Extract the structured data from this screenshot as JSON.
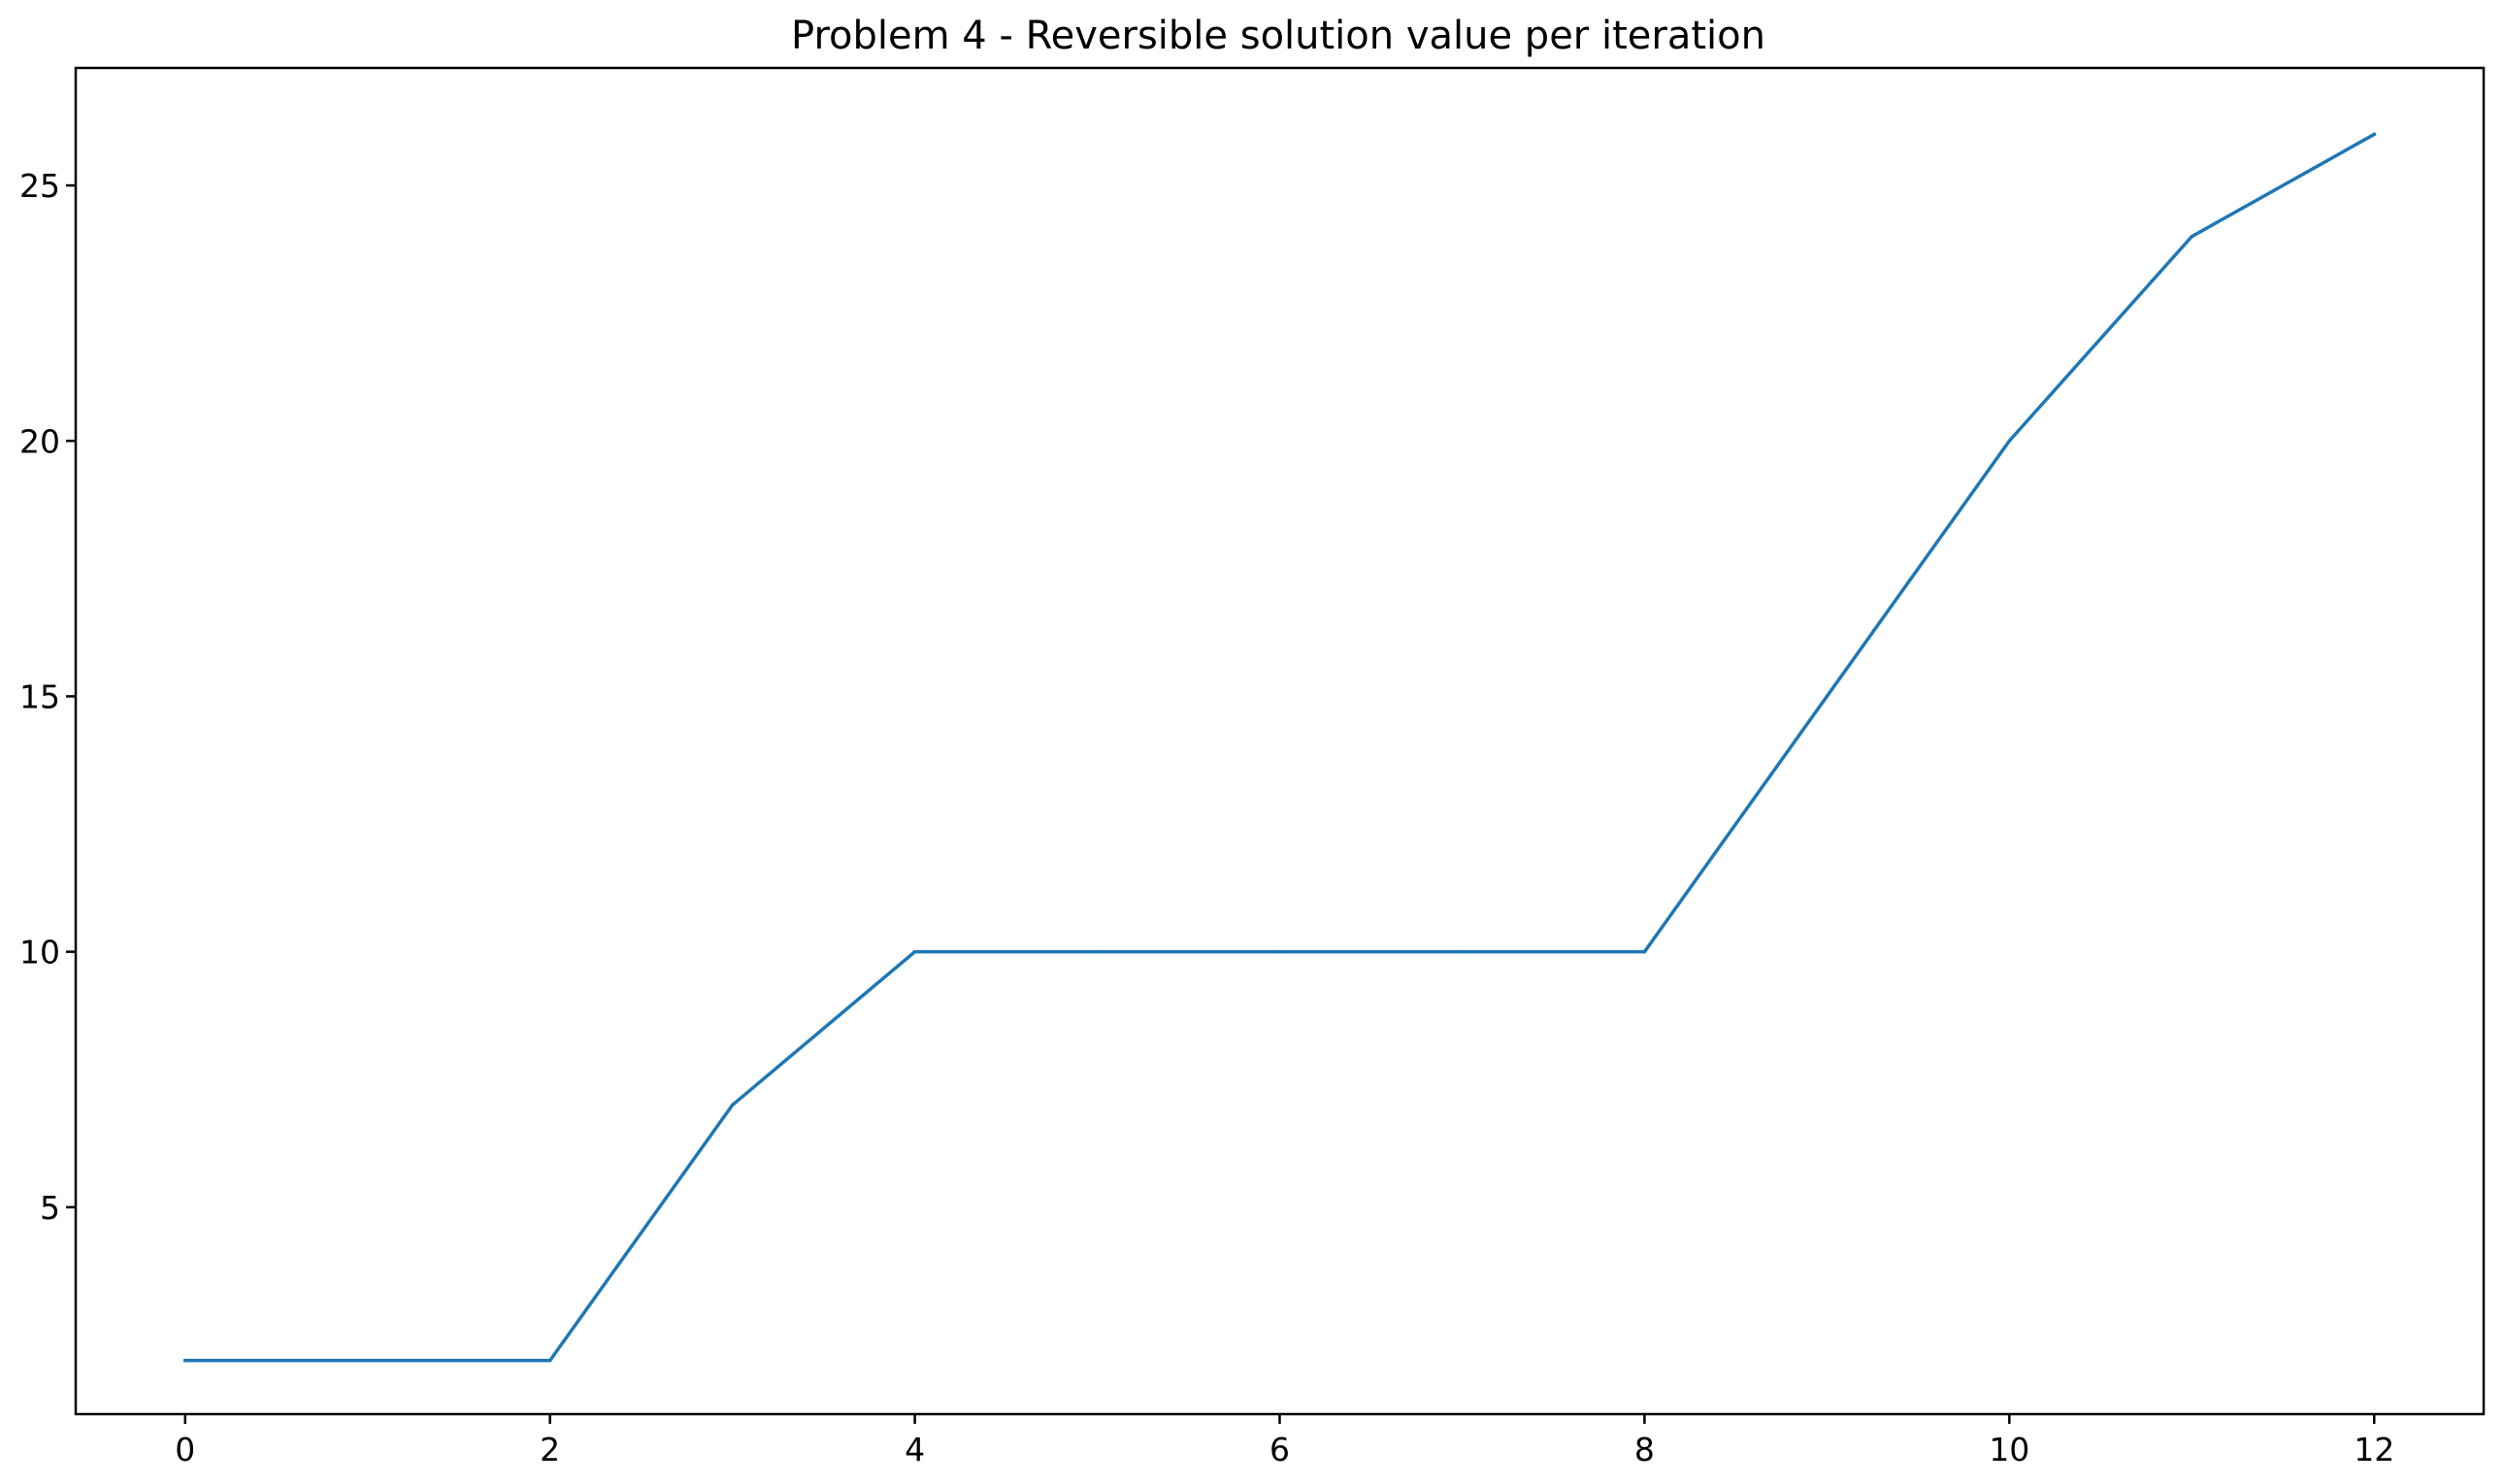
{
  "chart_data": {
    "type": "line",
    "title": "Problem 4 - Reversible solution value per iteration",
    "xlabel": "",
    "ylabel": "",
    "x": [
      0,
      1,
      2,
      3,
      4,
      5,
      6,
      7,
      8,
      9,
      10,
      11,
      12
    ],
    "series": [
      {
        "values": [
          2,
          2,
          2,
          7,
          10,
          10,
          10,
          10,
          10,
          15,
          20,
          24,
          26
        ],
        "color": "#1f77b4"
      }
    ],
    "xlim": [
      -0.6,
      12.6
    ],
    "ylim": [
      0.95,
      27.3
    ],
    "xticks": [
      0,
      2,
      4,
      6,
      8,
      10,
      12
    ],
    "yticks": [
      5,
      10,
      15,
      20,
      25
    ],
    "grid": false,
    "legend": "none"
  }
}
